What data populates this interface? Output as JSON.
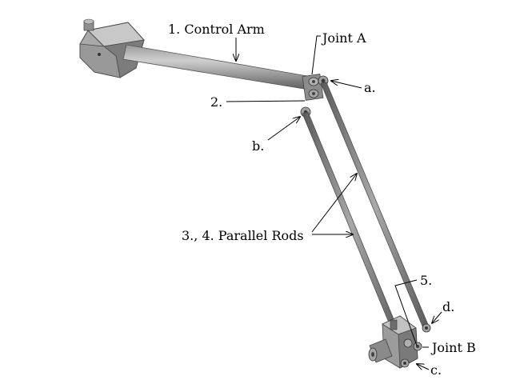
{
  "labels": {
    "control_arm": "1. Control Arm",
    "joint_a": "Joint A",
    "a": "a.",
    "two": "2.",
    "b": "b.",
    "parallel_rods": "3., 4. Parallel Rods",
    "five": "5.",
    "d": "d.",
    "joint_b": "Joint B",
    "c": "c."
  },
  "colors": {
    "metal_light": "#b9b9b9",
    "metal_mid": "#8e8e8e",
    "metal_dark": "#555555",
    "line": "#000000"
  }
}
